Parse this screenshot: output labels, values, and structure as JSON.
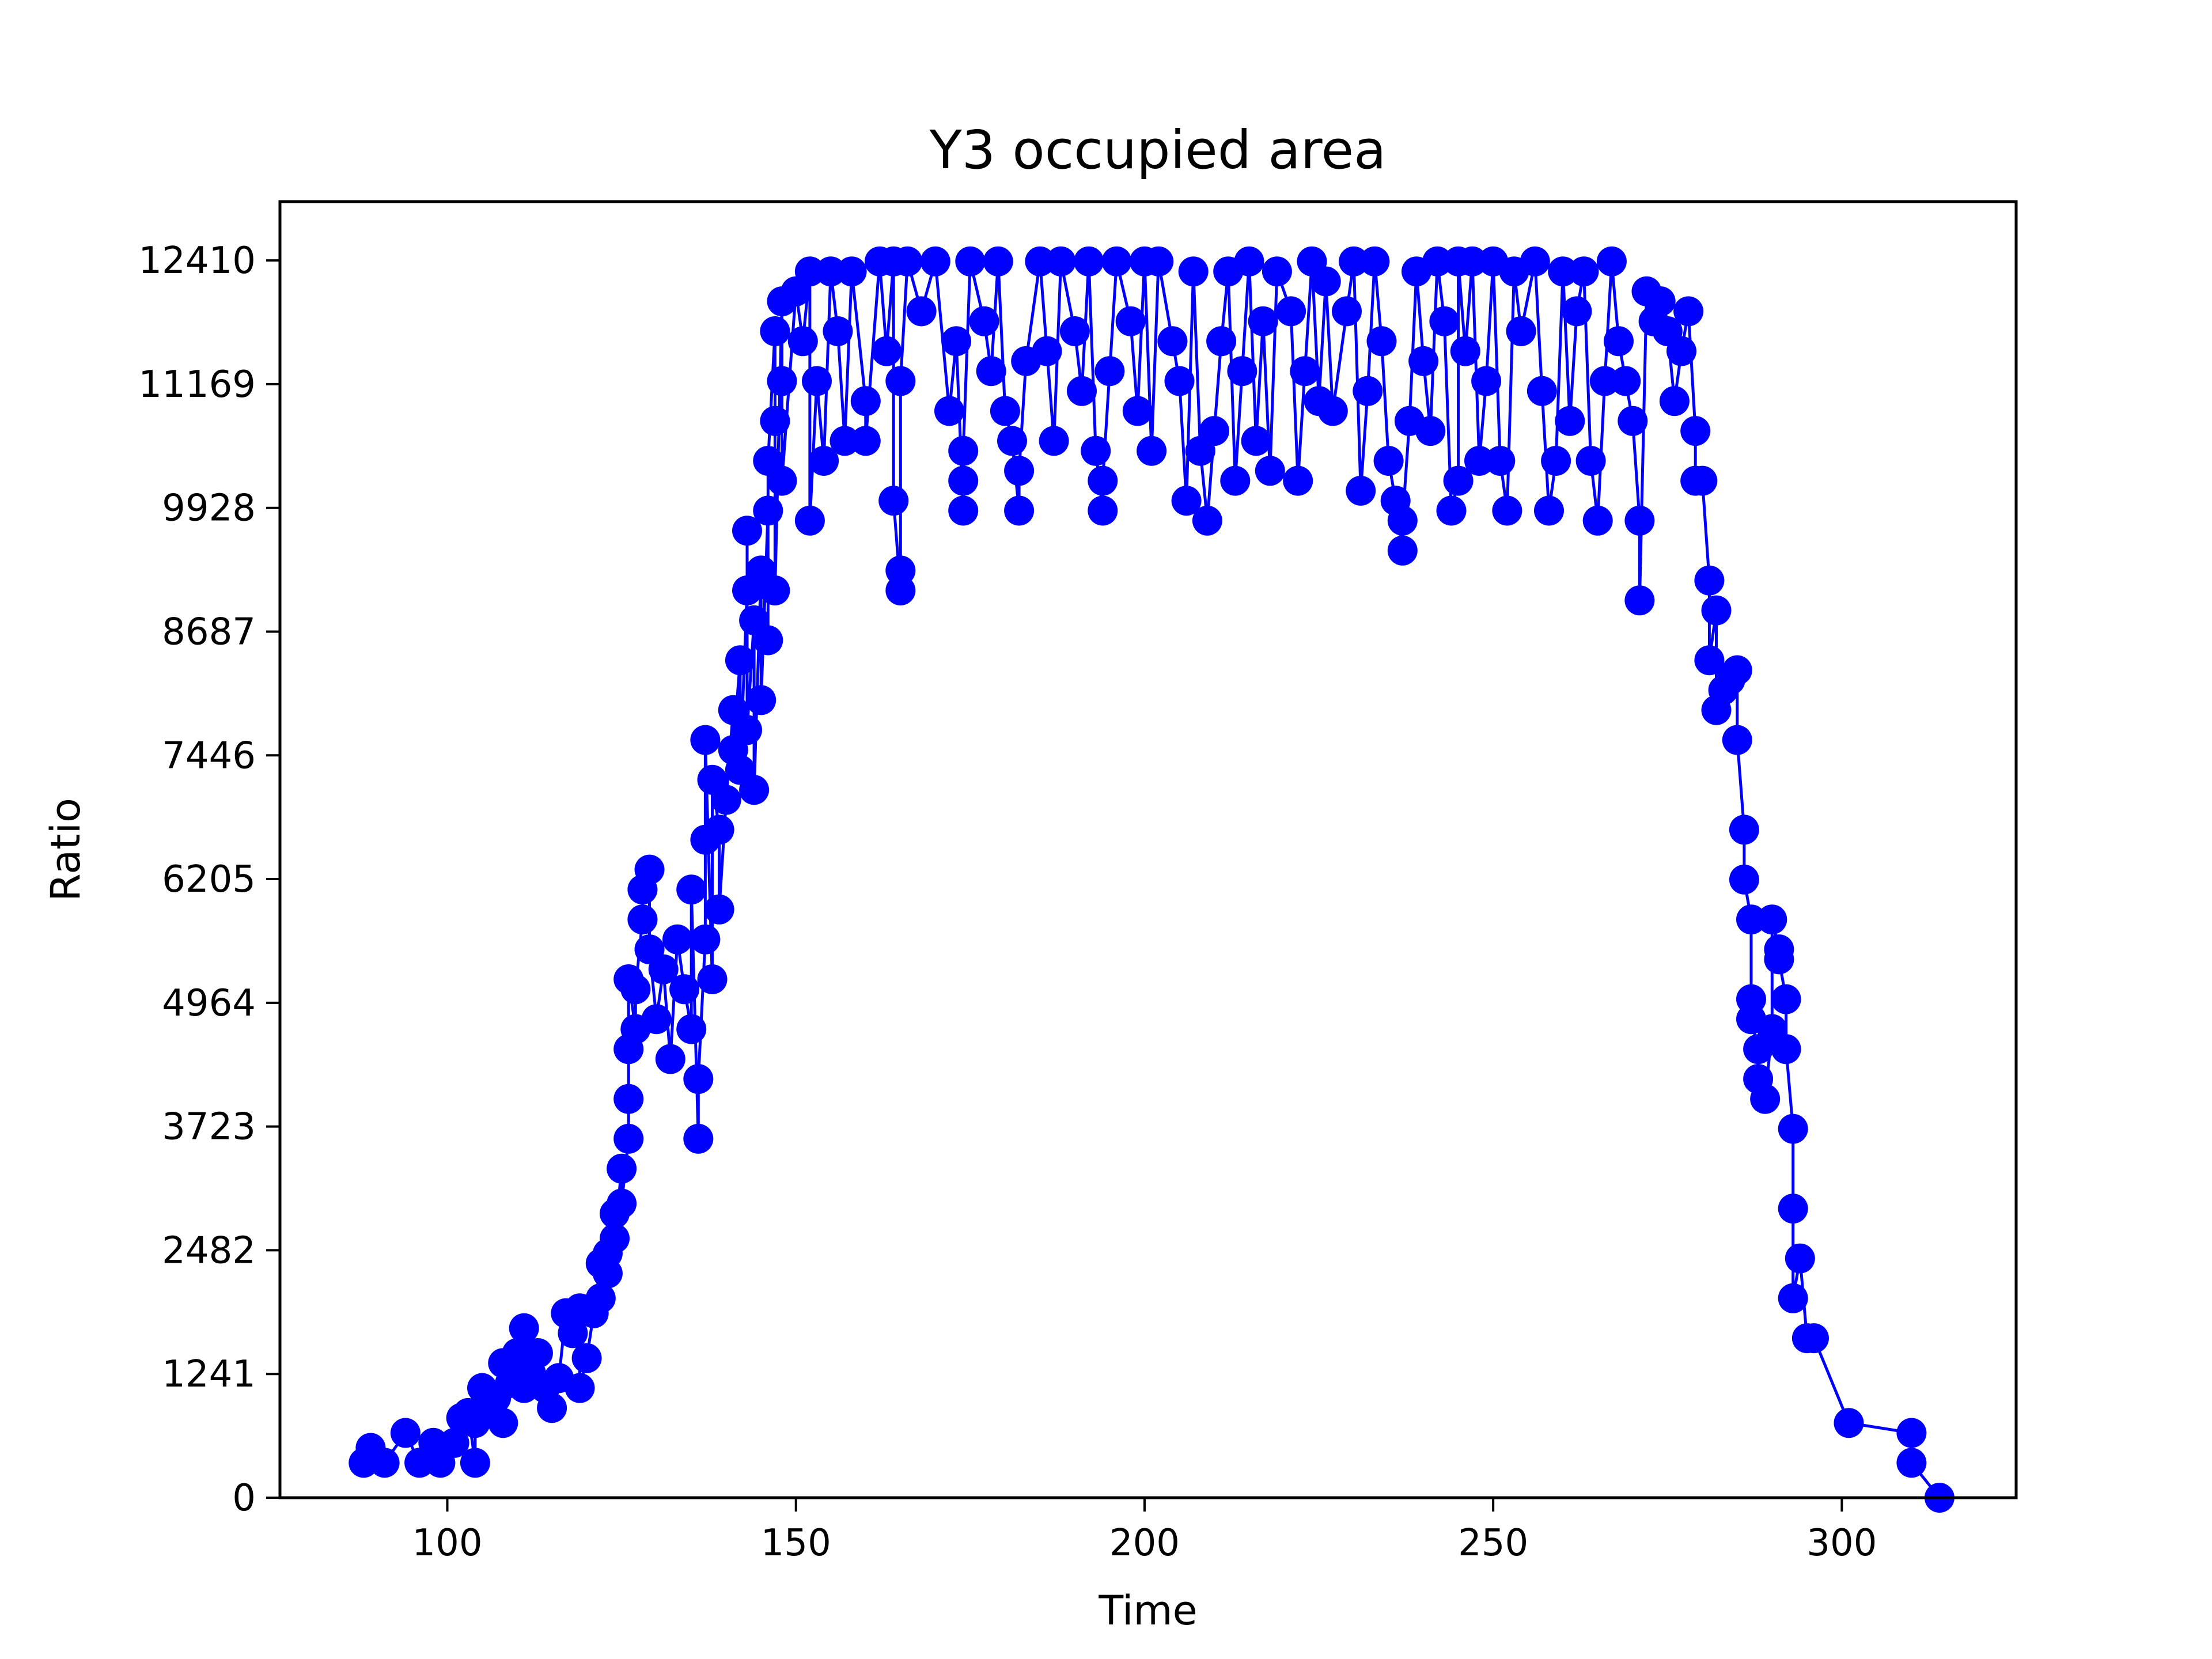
{
  "chart_data": {
    "type": "line",
    "title": "Y3 occupied area",
    "xlabel": "Time",
    "ylabel": "Ratio",
    "xlim": [
      76,
      325
    ],
    "ylim": [
      0,
      13000
    ],
    "xticks": [
      100,
      150,
      200,
      250,
      300
    ],
    "xtick_labels": [
      "100",
      "150",
      "200",
      "250",
      "300"
    ],
    "yticks": [
      0,
      1241,
      2482,
      3723,
      4964,
      6205,
      7446,
      8687,
      9928,
      11169,
      12410
    ],
    "ytick_labels": [
      "0",
      "1241",
      "2482",
      "3723",
      "4964",
      "6205",
      "7446",
      "8687",
      "9928",
      "11169",
      "12410"
    ],
    "grid": false,
    "legend": "none",
    "colors": {
      "series": "#0000ff",
      "axes": "#000000",
      "background": "#ffffff"
    },
    "series": [
      {
        "marker": "circle",
        "points": [
          [
            88,
            350
          ],
          [
            89,
            500
          ],
          [
            91,
            350
          ],
          [
            94,
            650
          ],
          [
            96,
            350
          ],
          [
            98,
            550
          ],
          [
            99,
            350
          ],
          [
            101,
            550
          ],
          [
            102,
            800
          ],
          [
            103,
            850
          ],
          [
            104,
            350
          ],
          [
            104,
            750
          ],
          [
            105,
            1100
          ],
          [
            106,
            950
          ],
          [
            107,
            1000
          ],
          [
            108,
            1350
          ],
          [
            108,
            750
          ],
          [
            109,
            1150
          ],
          [
            110,
            1450
          ],
          [
            111,
            1700
          ],
          [
            111,
            1100
          ],
          [
            112,
            1250
          ],
          [
            113,
            1450
          ],
          [
            114,
            1100
          ],
          [
            115,
            900
          ],
          [
            116,
            1200
          ],
          [
            117,
            1850
          ],
          [
            118,
            1650
          ],
          [
            119,
            1900
          ],
          [
            119,
            1100
          ],
          [
            120,
            1400
          ],
          [
            121,
            1850
          ],
          [
            122,
            2350
          ],
          [
            122,
            2000
          ],
          [
            123,
            2450
          ],
          [
            123,
            2250
          ],
          [
            124,
            2850
          ],
          [
            124,
            2600
          ],
          [
            125,
            3300
          ],
          [
            125,
            2950
          ],
          [
            126,
            3600
          ],
          [
            126,
            4000
          ],
          [
            126,
            4500
          ],
          [
            126,
            5200
          ],
          [
            127,
            4700
          ],
          [
            127,
            5100
          ],
          [
            128,
            5800
          ],
          [
            128,
            6100
          ],
          [
            129,
            6300
          ],
          [
            129,
            5500
          ],
          [
            130,
            4800
          ],
          [
            131,
            5300
          ],
          [
            132,
            4400
          ],
          [
            133,
            5600
          ],
          [
            134,
            5100
          ],
          [
            135,
            4700
          ],
          [
            135,
            6100
          ],
          [
            136,
            3600
          ],
          [
            136,
            4200
          ],
          [
            137,
            5600
          ],
          [
            137,
            6600
          ],
          [
            137,
            7600
          ],
          [
            138,
            5200
          ],
          [
            138,
            7200
          ],
          [
            139,
            6700
          ],
          [
            139,
            5900
          ],
          [
            140,
            7000
          ],
          [
            141,
            7900
          ],
          [
            141,
            7500
          ],
          [
            142,
            8400
          ],
          [
            142,
            7300
          ],
          [
            143,
            9100
          ],
          [
            143,
            9700
          ],
          [
            143,
            7700
          ],
          [
            144,
            8800
          ],
          [
            144,
            7100
          ],
          [
            145,
            9300
          ],
          [
            145,
            8000
          ],
          [
            146,
            9900
          ],
          [
            146,
            8600
          ],
          [
            146,
            10400
          ],
          [
            147,
            11700
          ],
          [
            147,
            10800
          ],
          [
            147,
            9100
          ],
          [
            148,
            12000
          ],
          [
            148,
            11200
          ],
          [
            148,
            10200
          ],
          [
            150,
            12100
          ],
          [
            151,
            11600
          ],
          [
            152,
            12300
          ],
          [
            152,
            9800
          ],
          [
            153,
            11200
          ],
          [
            154,
            10400
          ],
          [
            155,
            12300
          ],
          [
            156,
            11700
          ],
          [
            157,
            10600
          ],
          [
            158,
            12300
          ],
          [
            160,
            11000
          ],
          [
            160,
            10600
          ],
          [
            162,
            12400
          ],
          [
            163,
            11500
          ],
          [
            164,
            12400
          ],
          [
            164,
            10000
          ],
          [
            165,
            9100
          ],
          [
            165,
            9300
          ],
          [
            165,
            11200
          ],
          [
            166,
            12400
          ],
          [
            168,
            11900
          ],
          [
            170,
            12400
          ],
          [
            172,
            10900
          ],
          [
            173,
            11600
          ],
          [
            174,
            9900
          ],
          [
            174,
            10200
          ],
          [
            174,
            10500
          ],
          [
            175,
            12400
          ],
          [
            177,
            11800
          ],
          [
            178,
            11300
          ],
          [
            179,
            12400
          ],
          [
            180,
            10900
          ],
          [
            181,
            10600
          ],
          [
            182,
            9900
          ],
          [
            182,
            10300
          ],
          [
            183,
            11400
          ],
          [
            185,
            12400
          ],
          [
            186,
            11500
          ],
          [
            187,
            10600
          ],
          [
            188,
            12400
          ],
          [
            190,
            11700
          ],
          [
            191,
            11100
          ],
          [
            192,
            12400
          ],
          [
            193,
            10500
          ],
          [
            194,
            9900
          ],
          [
            194,
            10200
          ],
          [
            195,
            11300
          ],
          [
            196,
            12400
          ],
          [
            198,
            11800
          ],
          [
            199,
            10900
          ],
          [
            200,
            12400
          ],
          [
            201,
            10500
          ],
          [
            202,
            12400
          ],
          [
            204,
            11600
          ],
          [
            205,
            11200
          ],
          [
            206,
            10000
          ],
          [
            207,
            12300
          ],
          [
            208,
            10500
          ],
          [
            209,
            9800
          ],
          [
            210,
            10700
          ],
          [
            211,
            11600
          ],
          [
            212,
            12300
          ],
          [
            213,
            10200
          ],
          [
            214,
            11300
          ],
          [
            215,
            12400
          ],
          [
            216,
            10600
          ],
          [
            217,
            11800
          ],
          [
            218,
            10300
          ],
          [
            219,
            12300
          ],
          [
            221,
            11900
          ],
          [
            222,
            10200
          ],
          [
            223,
            11300
          ],
          [
            224,
            12400
          ],
          [
            225,
            11000
          ],
          [
            226,
            12200
          ],
          [
            227,
            10900
          ],
          [
            229,
            11900
          ],
          [
            230,
            12400
          ],
          [
            231,
            10100
          ],
          [
            232,
            11100
          ],
          [
            233,
            12400
          ],
          [
            234,
            11600
          ],
          [
            235,
            10400
          ],
          [
            236,
            10000
          ],
          [
            237,
            9500
          ],
          [
            237,
            9800
          ],
          [
            238,
            10800
          ],
          [
            239,
            12300
          ],
          [
            240,
            11400
          ],
          [
            241,
            10700
          ],
          [
            242,
            12400
          ],
          [
            243,
            11800
          ],
          [
            244,
            9900
          ],
          [
            245,
            10200
          ],
          [
            245,
            12400
          ],
          [
            246,
            11500
          ],
          [
            247,
            12400
          ],
          [
            248,
            10400
          ],
          [
            249,
            11200
          ],
          [
            250,
            12400
          ],
          [
            251,
            10400
          ],
          [
            252,
            9900
          ],
          [
            253,
            12300
          ],
          [
            254,
            11700
          ],
          [
            256,
            12400
          ],
          [
            257,
            11100
          ],
          [
            258,
            9900
          ],
          [
            259,
            10400
          ],
          [
            260,
            12300
          ],
          [
            261,
            10800
          ],
          [
            262,
            11900
          ],
          [
            263,
            12300
          ],
          [
            264,
            10400
          ],
          [
            265,
            9800
          ],
          [
            266,
            11200
          ],
          [
            267,
            12400
          ],
          [
            268,
            11600
          ],
          [
            269,
            11200
          ],
          [
            270,
            10800
          ],
          [
            271,
            9800
          ],
          [
            271,
            9000
          ],
          [
            272,
            12100
          ],
          [
            273,
            11800
          ],
          [
            274,
            12000
          ],
          [
            275,
            11700
          ],
          [
            276,
            11000
          ],
          [
            277,
            11500
          ],
          [
            278,
            11900
          ],
          [
            279,
            10700
          ],
          [
            279,
            10200
          ],
          [
            280,
            10200
          ],
          [
            281,
            9200
          ],
          [
            281,
            8400
          ],
          [
            282,
            8900
          ],
          [
            282,
            7900
          ],
          [
            283,
            8100
          ],
          [
            284,
            8200
          ],
          [
            285,
            8300
          ],
          [
            285,
            7600
          ],
          [
            286,
            6700
          ],
          [
            286,
            6200
          ],
          [
            287,
            5800
          ],
          [
            287,
            5000
          ],
          [
            287,
            4800
          ],
          [
            288,
            4500
          ],
          [
            288,
            4200
          ],
          [
            289,
            4000
          ],
          [
            290,
            4700
          ],
          [
            290,
            5800
          ],
          [
            291,
            5500
          ],
          [
            291,
            5400
          ],
          [
            292,
            5000
          ],
          [
            292,
            4500
          ],
          [
            293,
            3700
          ],
          [
            293,
            2900
          ],
          [
            293,
            2000
          ],
          [
            294,
            2400
          ],
          [
            295,
            1600
          ],
          [
            296,
            1600
          ],
          [
            301,
            750
          ],
          [
            310,
            650
          ],
          [
            310,
            350
          ],
          [
            314,
            0
          ]
        ]
      }
    ]
  }
}
